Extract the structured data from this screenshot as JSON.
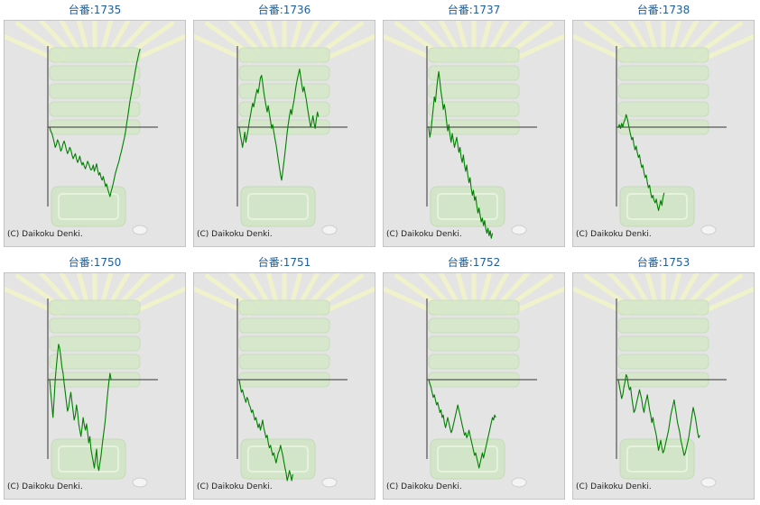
{
  "credit": "(C) Daikoku Denki.",
  "colors": {
    "title": "#1d5fa0",
    "line": "#008000",
    "axis": "#333333",
    "panel": "#e4e4e4"
  },
  "chart_data": [
    {
      "type": "line",
      "title": "台番:1735",
      "xlabel": "",
      "ylabel": "",
      "values": [
        0,
        -3,
        -5,
        -8,
        -12,
        -16,
        -14,
        -10,
        -12,
        -15,
        -19,
        -17,
        -13,
        -11,
        -14,
        -18,
        -21,
        -19,
        -16,
        -18,
        -22,
        -25,
        -23,
        -21,
        -25,
        -28,
        -26,
        -23,
        -27,
        -30,
        -28,
        -31,
        -33,
        -30,
        -27,
        -29,
        -32,
        -34,
        -33,
        -30,
        -35,
        -32,
        -29,
        -34,
        -38,
        -36,
        -40,
        -42,
        -39,
        -43,
        -47,
        -45,
        -49,
        -52,
        -55,
        -51,
        -48,
        -44,
        -40,
        -36,
        -33,
        -30,
        -27,
        -23,
        -20,
        -16,
        -12,
        -8,
        -3,
        3,
        9,
        15,
        21,
        26,
        31,
        36,
        41,
        46,
        51,
        55,
        59,
        62
      ]
    },
    {
      "type": "line",
      "title": "台番:1736",
      "xlabel": "",
      "ylabel": "",
      "values": [
        0,
        -6,
        -11,
        -16,
        -10,
        -4,
        -12,
        -7,
        -2,
        4,
        9,
        14,
        19,
        16,
        21,
        26,
        30,
        27,
        33,
        39,
        41,
        35,
        28,
        22,
        17,
        12,
        17,
        11,
        5,
        -1,
        2,
        -4,
        -9,
        -14,
        -20,
        -26,
        -32,
        -38,
        -42,
        -35,
        -28,
        -20,
        -12,
        -4,
        3,
        9,
        14,
        10,
        16,
        21,
        27,
        33,
        38,
        42,
        46,
        40,
        34,
        28,
        32,
        27,
        22,
        16,
        10,
        5,
        0,
        4,
        9,
        3,
        -1,
        6,
        12,
        8
      ]
    },
    {
      "type": "line",
      "title": "台番:1737",
      "xlabel": "",
      "ylabel": "",
      "values": [
        0,
        -8,
        -3,
        6,
        15,
        24,
        20,
        30,
        38,
        44,
        36,
        28,
        22,
        14,
        18,
        12,
        4,
        -3,
        2,
        -6,
        -12,
        -5,
        -10,
        -16,
        -12,
        -8,
        -14,
        -20,
        -16,
        -24,
        -28,
        -22,
        -30,
        -35,
        -30,
        -38,
        -44,
        -40,
        -48,
        -54,
        -50,
        -58,
        -55,
        -62,
        -68,
        -64,
        -70,
        -75,
        -72,
        -78,
        -74,
        -80,
        -84,
        -80,
        -86,
        -82,
        -88,
        -84
      ]
    },
    {
      "type": "line",
      "title": "台番:1738",
      "xlabel": "",
      "ylabel": "",
      "values": [
        0,
        2,
        -1,
        3,
        0,
        4,
        6,
        10,
        7,
        3,
        -2,
        -6,
        -10,
        -8,
        -14,
        -18,
        -15,
        -20,
        -24,
        -22,
        -28,
        -32,
        -30,
        -36,
        -40,
        -38,
        -44,
        -48,
        -46,
        -52,
        -56,
        -54,
        -58,
        -60,
        -57,
        -62,
        -66,
        -62,
        -58,
        -62,
        -56,
        -52
      ]
    },
    {
      "type": "line",
      "title": "台番:1750",
      "xlabel": "",
      "ylabel": "",
      "values": [
        0,
        -10,
        -20,
        -30,
        -15,
        0,
        10,
        20,
        28,
        25,
        18,
        10,
        5,
        -3,
        -10,
        -18,
        -25,
        -22,
        -15,
        -10,
        -18,
        -25,
        -32,
        -28,
        -20,
        -26,
        -35,
        -40,
        -45,
        -38,
        -30,
        -36,
        -40,
        -35,
        -42,
        -50,
        -45,
        -55,
        -60,
        -65,
        -70,
        -62,
        -55,
        -68,
        -72,
        -66,
        -60,
        -52,
        -45,
        -38,
        -30,
        -20,
        -10,
        -2,
        5,
        0
      ]
    },
    {
      "type": "line",
      "title": "台番:1751",
      "xlabel": "",
      "ylabel": "",
      "values": [
        0,
        -5,
        -10,
        -8,
        -12,
        -15,
        -18,
        -14,
        -16,
        -20,
        -22,
        -26,
        -24,
        -28,
        -32,
        -30,
        -34,
        -38,
        -35,
        -40,
        -36,
        -32,
        -38,
        -42,
        -46,
        -44,
        -50,
        -54,
        -52,
        -56,
        -60,
        -58,
        -62,
        -66,
        -62,
        -58,
        -56,
        -52,
        -56,
        -60,
        -65,
        -70,
        -74,
        -80,
        -76,
        -72,
        -76,
        -80,
        -75
      ]
    },
    {
      "type": "line",
      "title": "台番:1752",
      "xlabel": "",
      "ylabel": "",
      "values": [
        0,
        -3,
        -6,
        -10,
        -14,
        -12,
        -16,
        -20,
        -18,
        -22,
        -26,
        -24,
        -30,
        -28,
        -34,
        -38,
        -34,
        -30,
        -34,
        -38,
        -42,
        -40,
        -36,
        -32,
        -28,
        -24,
        -20,
        -24,
        -28,
        -32,
        -36,
        -40,
        -44,
        -42,
        -46,
        -44,
        -40,
        -44,
        -48,
        -52,
        -56,
        -60,
        -58,
        -62,
        -66,
        -70,
        -66,
        -62,
        -58,
        -62,
        -58,
        -54,
        -50,
        -46,
        -42,
        -38,
        -34,
        -30,
        -32,
        -28,
        -30
      ]
    },
    {
      "type": "line",
      "title": "台番:1753",
      "xlabel": "",
      "ylabel": "",
      "values": [
        0,
        -5,
        -10,
        -15,
        -12,
        -6,
        -2,
        4,
        2,
        -4,
        -8,
        -6,
        -14,
        -20,
        -26,
        -24,
        -20,
        -16,
        -12,
        -8,
        -12,
        -16,
        -22,
        -26,
        -20,
        -16,
        -12,
        -18,
        -24,
        -28,
        -34,
        -30,
        -36,
        -40,
        -44,
        -50,
        -56,
        -52,
        -48,
        -54,
        -58,
        -56,
        -52,
        -48,
        -44,
        -40,
        -34,
        -28,
        -24,
        -20,
        -16,
        -22,
        -28,
        -34,
        -38,
        -42,
        -48,
        -52,
        -56,
        -60,
        -58,
        -54,
        -50,
        -46,
        -40,
        -34,
        -28,
        -22,
        -26,
        -30,
        -36,
        -42,
        -46,
        -44
      ]
    }
  ]
}
